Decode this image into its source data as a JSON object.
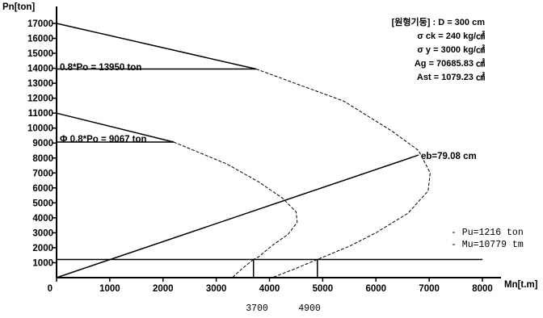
{
  "chart_data": {
    "type": "line",
    "ylabel": "Pn[ton]",
    "xlabel": "Mn[t.m]",
    "xlim": [
      0,
      8000
    ],
    "ylim": [
      0,
      17000
    ],
    "x_ticks": [
      0,
      1000,
      2000,
      3000,
      4000,
      5000,
      6000,
      7000,
      8000
    ],
    "y_ticks": [
      1000,
      2000,
      3000,
      4000,
      5000,
      6000,
      7000,
      8000,
      9000,
      10000,
      11000,
      12000,
      13000,
      14000,
      15000,
      16000,
      17000
    ],
    "x_tick_labels": [
      "0",
      "1000",
      "2000",
      "3000",
      "4000",
      "5000",
      "6000",
      "7000",
      "8000"
    ],
    "y_tick_labels": [
      "1000",
      "2000",
      "3000",
      "4000",
      "5000",
      "6000",
      "7000",
      "8000",
      "9000",
      "10000",
      "11000",
      "12000",
      "13000",
      "14000",
      "15000",
      "16000",
      "17000"
    ],
    "info_lines": [
      "[원형기둥] : D = 300 cm",
      "σ ck = 240 kg/㎠",
      "σ y = 3000 kg/㎠",
      "Ag = 70685.83 ㎠",
      "Ast = 1079.23 ㎠"
    ],
    "annotations": {
      "po_cap": "0.8*Po = 13950 ton",
      "phi_po_cap": "Φ 0.8*Po = 9067 ton",
      "eb": "eb=79.08 cm",
      "pu": "- Pu=1216 ton",
      "mu": "- Mu=10779 tm",
      "below_axis_1": "3700",
      "below_axis_2": "4900"
    },
    "values": {
      "po_cap": 13950,
      "phi_po_cap": 9067,
      "pu": 1216,
      "below_axis_1": 3700,
      "below_axis_2": 4900
    },
    "series": [
      {
        "style": "solid",
        "points": [
          [
            0,
            17000
          ],
          [
            3750,
            13950
          ]
        ]
      },
      {
        "style": "dashed",
        "points": [
          [
            3750,
            13950
          ],
          [
            5400,
            11800
          ],
          [
            6300,
            9800
          ],
          [
            6800,
            8500
          ],
          [
            7020,
            7000
          ],
          [
            6980,
            5800
          ],
          [
            6600,
            4300
          ],
          [
            6000,
            3000
          ],
          [
            5500,
            2100
          ],
          [
            4900,
            1216
          ],
          [
            4450,
            550
          ],
          [
            4050,
            0
          ]
        ]
      },
      {
        "style": "solid",
        "points": [
          [
            0,
            11000
          ],
          [
            2200,
            9067
          ]
        ]
      },
      {
        "style": "dashed",
        "points": [
          [
            2200,
            9067
          ],
          [
            3200,
            7600
          ],
          [
            3800,
            6400
          ],
          [
            4250,
            5300
          ],
          [
            4500,
            4400
          ],
          [
            4520,
            3700
          ],
          [
            4350,
            2900
          ],
          [
            4050,
            2150
          ],
          [
            3800,
            1400
          ],
          [
            3700,
            1216
          ]
        ]
      },
      {
        "style": "dashed",
        "points": [
          [
            3700,
            1216
          ],
          [
            3500,
            650
          ],
          [
            3300,
            0
          ]
        ]
      },
      {
        "style": "solid",
        "points": [
          [
            0,
            0
          ],
          [
            6800,
            8200
          ]
        ]
      },
      {
        "style": "solid",
        "points": [
          [
            0,
            13950
          ],
          [
            3750,
            13950
          ]
        ]
      },
      {
        "style": "solid",
        "points": [
          [
            0,
            9067
          ],
          [
            2200,
            9067
          ]
        ]
      },
      {
        "style": "solid",
        "points": [
          [
            0,
            1216
          ],
          [
            8000,
            1216
          ]
        ]
      },
      {
        "style": "solid",
        "points": [
          [
            3700,
            0
          ],
          [
            3700,
            1216
          ]
        ]
      },
      {
        "style": "solid",
        "points": [
          [
            4900,
            0
          ],
          [
            4900,
            1216
          ]
        ]
      }
    ]
  }
}
